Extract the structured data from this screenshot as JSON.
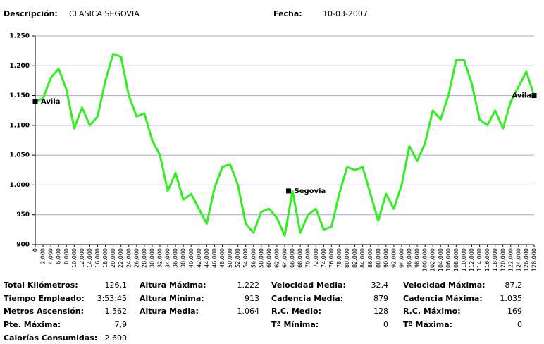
{
  "header": {
    "description_label": "Descripción:",
    "description": "CLASICA SEGOVIA",
    "date_label": "Fecha:",
    "date": "10-03-2007"
  },
  "chart_data": {
    "type": "line",
    "color": "#33ee22",
    "grid": true,
    "x": [
      0,
      2000,
      4000,
      6000,
      8000,
      10000,
      12000,
      14000,
      16000,
      18000,
      20000,
      22000,
      24000,
      26000,
      28000,
      30000,
      32000,
      34000,
      36000,
      38000,
      40000,
      42000,
      44000,
      46000,
      48000,
      50000,
      52000,
      54000,
      56000,
      58000,
      60000,
      62000,
      64000,
      66000,
      68000,
      70000,
      72000,
      74000,
      76000,
      78000,
      80000,
      82000,
      84000,
      86000,
      88000,
      90000,
      92000,
      94000,
      96000,
      98000,
      100000,
      102000,
      104000,
      106000,
      108000,
      110000,
      112000,
      114000,
      116000,
      118000,
      120000,
      122000,
      124000,
      126000,
      128000
    ],
    "values": [
      1140,
      1145,
      1180,
      1195,
      1160,
      1095,
      1130,
      1100,
      1115,
      1175,
      1220,
      1215,
      1150,
      1115,
      1120,
      1075,
      1050,
      990,
      1020,
      975,
      985,
      960,
      935,
      995,
      1030,
      1035,
      1000,
      935,
      920,
      955,
      960,
      945,
      915,
      990,
      920,
      950,
      960,
      925,
      930,
      985,
      1030,
      1025,
      1030,
      985,
      940,
      985,
      960,
      1000,
      1065,
      1040,
      1070,
      1125,
      1110,
      1150,
      1210,
      1210,
      1170,
      1110,
      1100,
      1125,
      1095,
      1140,
      1165,
      1190,
      1150
    ],
    "xlim": [
      0,
      128000
    ],
    "xticks": [
      0,
      {
        "value": 2000,
        "label": "2.000"
      },
      {
        "value": 4000,
        "label": "4.000"
      },
      {
        "value": 6000,
        "label": "6.000"
      },
      {
        "value": 8000,
        "label": "8.000"
      },
      {
        "value": 10000,
        "label": "10.000"
      },
      {
        "value": 12000,
        "label": "12.000"
      },
      {
        "value": 14000,
        "label": "14.000"
      },
      {
        "value": 16000,
        "label": "16.000"
      },
      {
        "value": 18000,
        "label": "18.000"
      },
      {
        "value": 20000,
        "label": "20.000"
      },
      {
        "value": 22000,
        "label": "22.000"
      },
      {
        "value": 24000,
        "label": "24.000"
      },
      {
        "value": 26000,
        "label": "26.000"
      },
      {
        "value": 28000,
        "label": "28.000"
      },
      {
        "value": 30000,
        "label": "30.000"
      },
      {
        "value": 32000,
        "label": "32.000"
      },
      {
        "value": 34000,
        "label": "34.000"
      },
      {
        "value": 36000,
        "label": "36.000"
      },
      {
        "value": 38000,
        "label": "38.000"
      },
      {
        "value": 40000,
        "label": "40.000"
      },
      {
        "value": 42000,
        "label": "42.000"
      },
      {
        "value": 44000,
        "label": "44.000"
      },
      {
        "value": 46000,
        "label": "46.000"
      },
      {
        "value": 48000,
        "label": "48.000"
      },
      {
        "value": 50000,
        "label": "50.000"
      },
      {
        "value": 52000,
        "label": "52.000"
      },
      {
        "value": 54000,
        "label": "54.000"
      },
      {
        "value": 56000,
        "label": "56.000"
      },
      {
        "value": 58000,
        "label": "58.000"
      },
      {
        "value": 60000,
        "label": "60.000"
      },
      {
        "value": 62000,
        "label": "62.000"
      },
      {
        "value": 64000,
        "label": "64.000"
      },
      {
        "value": 66000,
        "label": "66.000"
      },
      {
        "value": 68000,
        "label": "68.000"
      },
      {
        "value": 70000,
        "label": "70.000"
      },
      {
        "value": 72000,
        "label": "72.000"
      },
      {
        "value": 74000,
        "label": "74.000"
      },
      {
        "value": 76000,
        "label": "76.000"
      },
      {
        "value": 78000,
        "label": "78.000"
      },
      {
        "value": 80000,
        "label": "80.000"
      },
      {
        "value": 82000,
        "label": "82.000"
      },
      {
        "value": 84000,
        "label": "84.000"
      },
      {
        "value": 86000,
        "label": "86.000"
      },
      {
        "value": 88000,
        "label": "88.000"
      },
      {
        "value": 90000,
        "label": "90.000"
      },
      {
        "value": 92000,
        "label": "92.000"
      },
      {
        "value": 94000,
        "label": "94.000"
      },
      {
        "value": 96000,
        "label": "96.000"
      },
      {
        "value": 98000,
        "label": "98.000"
      },
      {
        "value": 100000,
        "label": "100.000"
      },
      {
        "value": 102000,
        "label": "102.000"
      },
      {
        "value": 104000,
        "label": "104.000"
      },
      {
        "value": 106000,
        "label": "106.000"
      },
      {
        "value": 108000,
        "label": "108.000"
      },
      {
        "value": 110000,
        "label": "110.000"
      },
      {
        "value": 112000,
        "label": "112.000"
      },
      {
        "value": 114000,
        "label": "114.000"
      },
      {
        "value": 116000,
        "label": "116.000"
      },
      {
        "value": 118000,
        "label": "118.000"
      },
      {
        "value": 120000,
        "label": "120.000"
      },
      {
        "value": 122000,
        "label": "122.000"
      },
      {
        "value": 124000,
        "label": "124.000"
      },
      {
        "value": 126000,
        "label": "126.000"
      },
      {
        "value": 128000,
        "label": "128.000"
      }
    ],
    "ylim": [
      900,
      1250
    ],
    "yticks": [
      900,
      950,
      {
        "value": 1000,
        "label": "1.000"
      },
      {
        "value": 1050,
        "label": "1.050"
      },
      {
        "value": 1100,
        "label": "1.100"
      },
      {
        "value": 1150,
        "label": "1.150"
      },
      {
        "value": 1200,
        "label": "1.200"
      },
      {
        "value": 1250,
        "label": "1.250"
      }
    ],
    "annotations": [
      {
        "text": "Avila",
        "x": 0,
        "y": 1140
      },
      {
        "text": "Segovia",
        "x": 65000,
        "y": 990
      },
      {
        "text": "Avila",
        "x": 128000,
        "y": 1150
      }
    ]
  },
  "summary": [
    [
      [
        "Total Kilómetros:",
        "126,1"
      ],
      [
        "Tiempo Empleado:",
        "3:53:45"
      ],
      [
        "Metros Ascensión:",
        "1.562"
      ],
      [
        "Pte. Máxima:",
        "7,9"
      ],
      [
        "Calorías Consumidas:",
        "2.600"
      ]
    ],
    [
      [
        "Altura Máxima:",
        "1.222"
      ],
      [
        "Altura Mínima:",
        "913"
      ],
      [
        "Altura Media:",
        "1.064"
      ]
    ],
    [
      [
        "Velocidad Media:",
        "32,4"
      ],
      [
        "Cadencia Media:",
        "879"
      ],
      [
        "R.C. Medio:",
        "128"
      ],
      [
        "Tª Mínima:",
        "0"
      ]
    ],
    [
      [
        "Velocidad Máxima:",
        "87,2"
      ],
      [
        "Cadencia Máxima:",
        "1.035"
      ],
      [
        "R.C. Máximo:",
        "169"
      ],
      [
        "Tª Máxima:",
        "0"
      ]
    ]
  ]
}
